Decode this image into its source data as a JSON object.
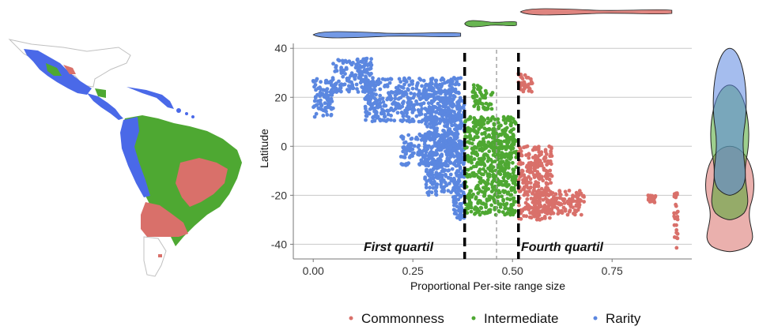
{
  "chart_data": {
    "type": "scatter",
    "xlabel": "Proportional Per-site range size",
    "ylabel": "Latitude",
    "xlim": [
      -0.05,
      0.95
    ],
    "ylim": [
      -46,
      42
    ],
    "x_ticks": [
      0.0,
      0.25,
      0.5,
      0.75
    ],
    "x_tick_labels": [
      "0.00",
      "0.25",
      "0.50",
      "0.75"
    ],
    "y_ticks": [
      40,
      20,
      0,
      -20,
      -40
    ],
    "y_tick_labels": [
      "40",
      "20",
      "0",
      "-20",
      "-40"
    ],
    "grid": "horizontal",
    "quartile_lines": [
      0.38,
      0.515
    ],
    "median_line": 0.46,
    "annotations": {
      "first": "First quartil",
      "fourth": "Fourth quartil"
    },
    "legend": {
      "placement": "bottom",
      "entries": [
        {
          "label": "Commonness",
          "color": "#d9706a"
        },
        {
          "label": "Intermediate",
          "color": "#4ea832"
        },
        {
          "label": "Rarity",
          "color": "#5b87e0"
        }
      ]
    },
    "series": [
      {
        "name": "Rarity",
        "color": "#5b87e0",
        "x_range": [
          0.0,
          0.38
        ],
        "clusters": [
          {
            "x": [
              0.0,
              0.05
            ],
            "y": [
              12,
              28
            ]
          },
          {
            "x": [
              0.05,
              0.15
            ],
            "y": [
              22,
              36
            ]
          },
          {
            "x": [
              0.13,
              0.37
            ],
            "y": [
              10,
              28
            ]
          },
          {
            "x": [
              0.28,
              0.38
            ],
            "y": [
              -20,
              20
            ]
          },
          {
            "x": [
              0.22,
              0.37
            ],
            "y": [
              -8,
              5
            ]
          },
          {
            "x": [
              0.35,
              0.38
            ],
            "y": [
              -30,
              -15
            ]
          }
        ]
      },
      {
        "name": "Intermediate",
        "color": "#4ea832",
        "x_range": [
          0.38,
          0.515
        ],
        "clusters": [
          {
            "x": [
              0.38,
              0.51
            ],
            "y": [
              -28,
              12
            ]
          },
          {
            "x": [
              0.4,
              0.45
            ],
            "y": [
              15,
              25
            ]
          },
          {
            "x": [
              0.45,
              0.51
            ],
            "y": [
              -5,
              5
            ]
          }
        ]
      },
      {
        "name": "Commonness",
        "color": "#d9706a",
        "x_range": [
          0.515,
          0.92
        ],
        "clusters": [
          {
            "x": [
              0.515,
              0.6
            ],
            "y": [
              -30,
              0
            ]
          },
          {
            "x": [
              0.55,
              0.68
            ],
            "y": [
              -28,
              -18
            ]
          },
          {
            "x": [
              0.51,
              0.55
            ],
            "y": [
              22,
              30
            ]
          },
          {
            "x": [
              0.84,
              0.86
            ],
            "y": [
              -23,
              -20
            ]
          },
          {
            "x": [
              0.905,
              0.915
            ],
            "y": [
              -42,
              -18
            ]
          }
        ]
      }
    ],
    "marginal_x_violins": [
      {
        "series": "Rarity",
        "x_range": [
          0.0,
          0.37
        ],
        "color": "#5b87e0"
      },
      {
        "series": "Intermediate",
        "x_range": [
          0.38,
          0.51
        ],
        "color": "#4ea832"
      },
      {
        "series": "Commonness",
        "x_range": [
          0.52,
          0.9
        ],
        "color": "#d9706a"
      }
    ],
    "marginal_y_violins": [
      {
        "series": "Commonness",
        "y_range": [
          -43,
          0
        ],
        "color": "#d9706a"
      },
      {
        "series": "Intermediate",
        "y_range": [
          -30,
          25
        ],
        "color": "#4ea832"
      },
      {
        "series": "Rarity",
        "y_range": [
          -20,
          40
        ],
        "color": "#5b87e0"
      }
    ]
  },
  "map": {
    "region": "Latin America",
    "colors": {
      "commonness": "#d9706a",
      "intermediate": "#4ea832",
      "rarity": "#4a69e8",
      "outline": "#b8b8b8"
    }
  }
}
